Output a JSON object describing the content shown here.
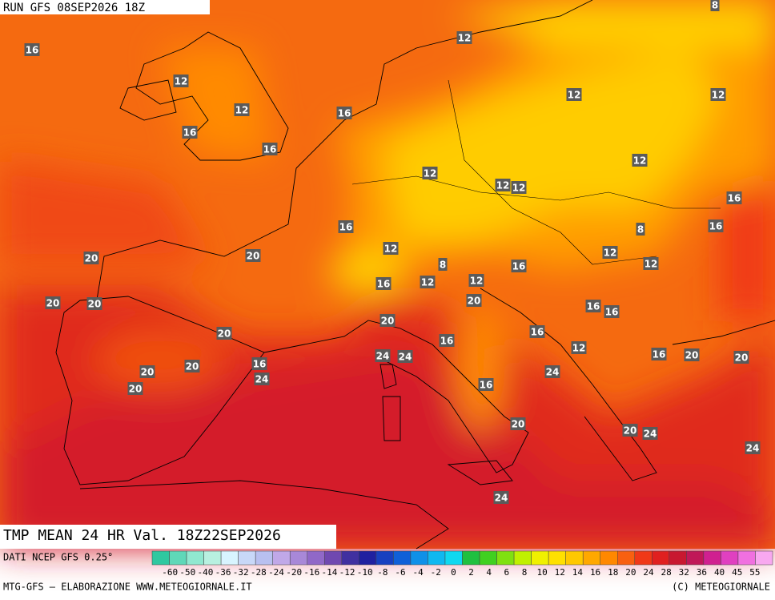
{
  "header": {
    "run": "RUN GFS 08SEP2026 18Z",
    "field": "TMP MEAN 24 HR Val. 18Z22SEP2026"
  },
  "map_labels": [
    "8",
    "12",
    "16",
    "12",
    "12",
    "12",
    "12",
    "16",
    "16",
    "16",
    "12",
    "12",
    "12",
    "12",
    "16",
    "16",
    "8",
    "16",
    "12",
    "20",
    "20",
    "12",
    "12",
    "8",
    "16",
    "16",
    "12",
    "12",
    "20",
    "20",
    "20",
    "16",
    "16",
    "20",
    "20",
    "16",
    "16",
    "12",
    "16",
    "20",
    "20",
    "24",
    "24",
    "16",
    "20",
    "20",
    "24",
    "24",
    "20",
    "16",
    "20",
    "20",
    "24",
    "24",
    "24"
  ],
  "footer": {
    "source": "DATI NCEP GFS 0.25°",
    "credit": "MTG-GFS — ELABORAZIONE WWW.METEOGIORNALE.IT",
    "copyright": "(C) METEOGIORNALE"
  },
  "legend": {
    "labels": [
      "-60",
      "-50",
      "-40",
      "-36",
      "-32",
      "-28",
      "-24",
      "-20",
      "-16",
      "-14",
      "-12",
      "-10",
      "-8",
      "-6",
      "-4",
      "-2",
      "0",
      "2",
      "4",
      "6",
      "8",
      "10",
      "12",
      "14",
      "16",
      "18",
      "20",
      "24",
      "28",
      "32",
      "36",
      "40",
      "45",
      "55"
    ],
    "colors": [
      "#2fc8a0",
      "#5fd8b8",
      "#90e8d0",
      "#b8f0e0",
      "#d8f4ff",
      "#c8d8f8",
      "#b8c0f0",
      "#c0a8e8",
      "#a888d8",
      "#9068c8",
      "#7048b0",
      "#4030a0",
      "#2020a0",
      "#1840c0",
      "#1060d8",
      "#1090e8",
      "#10b8f0",
      "#10d8f0",
      "#20c040",
      "#40d020",
      "#80e010",
      "#c0f000",
      "#f0f000",
      "#ffe000",
      "#ffc800",
      "#ffa800",
      "#ff8800",
      "#f86010",
      "#f03818",
      "#e02020",
      "#c81830",
      "#c01858",
      "#d02090",
      "#e040c0",
      "#f070e0",
      "#f8a8f0"
    ]
  }
}
